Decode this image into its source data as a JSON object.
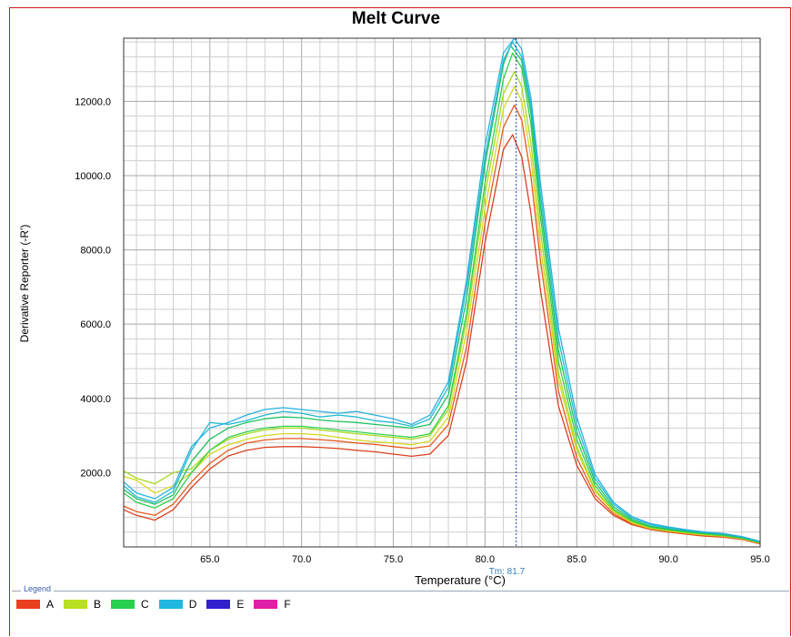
{
  "chart_data": {
    "type": "line",
    "title": "Melt Curve",
    "xlabel": "Temperature (°C)",
    "ylabel": "Derivative Reporter (-R')",
    "xlim": [
      60.3,
      95.0
    ],
    "ylim": [
      0,
      13700
    ],
    "grid": true,
    "x_ticks": [
      65,
      70,
      75,
      80,
      85,
      90,
      95
    ],
    "x_tick_labels": [
      "65.0",
      "70.0",
      "75.0",
      "80.0",
      "85.0",
      "90.0",
      "95.0"
    ],
    "y_ticks": [
      2000,
      4000,
      6000,
      8000,
      10000,
      12000
    ],
    "y_tick_labels": [
      "2000.0",
      "4000.0",
      "6000.0",
      "8000.0",
      "10000.0",
      "12000.0"
    ],
    "annotation": {
      "label": "Tm: 81.7",
      "x": 81.7
    },
    "legend": {
      "title": "Legend",
      "position": "bottom",
      "entries": [
        {
          "name": "A",
          "color": "#e8401c"
        },
        {
          "name": "B",
          "color": "#b8e020"
        },
        {
          "name": "C",
          "color": "#28d050"
        },
        {
          "name": "D",
          "color": "#20b8e0"
        },
        {
          "name": "E",
          "color": "#3020d0"
        },
        {
          "name": "F",
          "color": "#e020a8"
        }
      ]
    },
    "series": [
      {
        "group": "A",
        "color": "#d84020",
        "points": [
          [
            60.3,
            1000
          ],
          [
            61,
            850
          ],
          [
            62,
            720
          ],
          [
            63,
            1000
          ],
          [
            64,
            1600
          ],
          [
            65,
            2100
          ],
          [
            66,
            2450
          ],
          [
            67,
            2600
          ],
          [
            68,
            2680
          ],
          [
            69,
            2700
          ],
          [
            70,
            2700
          ],
          [
            71,
            2680
          ],
          [
            72,
            2650
          ],
          [
            73,
            2600
          ],
          [
            74,
            2560
          ],
          [
            75,
            2500
          ],
          [
            76,
            2440
          ],
          [
            77,
            2500
          ],
          [
            78,
            3000
          ],
          [
            79,
            5000
          ],
          [
            80,
            8200
          ],
          [
            81,
            10700
          ],
          [
            81.5,
            11100
          ],
          [
            82,
            10500
          ],
          [
            82.5,
            9000
          ],
          [
            83,
            7000
          ],
          [
            84,
            3800
          ],
          [
            85,
            2200
          ],
          [
            86,
            1300
          ],
          [
            87,
            850
          ],
          [
            88,
            600
          ],
          [
            89,
            470
          ],
          [
            90,
            400
          ],
          [
            91,
            340
          ],
          [
            92,
            290
          ],
          [
            93,
            260
          ],
          [
            94,
            200
          ],
          [
            95,
            80
          ]
        ]
      },
      {
        "group": "A",
        "color": "#e65a1e",
        "points": [
          [
            60.3,
            1100
          ],
          [
            61,
            950
          ],
          [
            62,
            850
          ],
          [
            63,
            1150
          ],
          [
            64,
            1750
          ],
          [
            65,
            2250
          ],
          [
            66,
            2600
          ],
          [
            67,
            2800
          ],
          [
            68,
            2880
          ],
          [
            69,
            2920
          ],
          [
            70,
            2920
          ],
          [
            71,
            2890
          ],
          [
            72,
            2850
          ],
          [
            73,
            2800
          ],
          [
            74,
            2760
          ],
          [
            75,
            2700
          ],
          [
            76,
            2650
          ],
          [
            77,
            2720
          ],
          [
            78,
            3300
          ],
          [
            79,
            5400
          ],
          [
            80,
            8700
          ],
          [
            81,
            11300
          ],
          [
            81.6,
            11900
          ],
          [
            82,
            11500
          ],
          [
            82.5,
            10000
          ],
          [
            83,
            7800
          ],
          [
            84,
            4200
          ],
          [
            85,
            2400
          ],
          [
            86,
            1400
          ],
          [
            87,
            900
          ],
          [
            88,
            620
          ],
          [
            89,
            480
          ],
          [
            90,
            410
          ],
          [
            91,
            350
          ],
          [
            92,
            300
          ],
          [
            93,
            270
          ],
          [
            94,
            210
          ],
          [
            95,
            90
          ]
        ]
      },
      {
        "group": "B",
        "color": "#d4d81c",
        "points": [
          [
            60.3,
            1900
          ],
          [
            61,
            1800
          ],
          [
            62,
            1450
          ],
          [
            63,
            1650
          ],
          [
            64,
            2000
          ],
          [
            65,
            2500
          ],
          [
            66,
            2750
          ],
          [
            67,
            2900
          ],
          [
            68,
            3000
          ],
          [
            69,
            3050
          ],
          [
            70,
            3050
          ],
          [
            71,
            3020
          ],
          [
            72,
            2950
          ],
          [
            73,
            2880
          ],
          [
            74,
            2830
          ],
          [
            75,
            2800
          ],
          [
            76,
            2750
          ],
          [
            77,
            2850
          ],
          [
            78,
            3500
          ],
          [
            79,
            5800
          ],
          [
            80,
            9100
          ],
          [
            81,
            11800
          ],
          [
            81.6,
            12400
          ],
          [
            82,
            12000
          ],
          [
            82.5,
            10500
          ],
          [
            83,
            8200
          ],
          [
            84,
            4500
          ],
          [
            85,
            2600
          ],
          [
            86,
            1500
          ],
          [
            87,
            950
          ],
          [
            88,
            650
          ],
          [
            89,
            500
          ],
          [
            90,
            430
          ],
          [
            91,
            370
          ],
          [
            92,
            320
          ],
          [
            93,
            290
          ],
          [
            94,
            220
          ],
          [
            95,
            100
          ]
        ]
      },
      {
        "group": "B",
        "color": "#a8d820",
        "points": [
          [
            60.3,
            2050
          ],
          [
            61,
            1850
          ],
          [
            62,
            1700
          ],
          [
            63,
            2000
          ],
          [
            64,
            2100
          ],
          [
            65,
            2600
          ],
          [
            66,
            2900
          ],
          [
            67,
            3050
          ],
          [
            68,
            3150
          ],
          [
            69,
            3200
          ],
          [
            70,
            3200
          ],
          [
            71,
            3150
          ],
          [
            72,
            3100
          ],
          [
            73,
            3050
          ],
          [
            74,
            3000
          ],
          [
            75,
            2950
          ],
          [
            76,
            2900
          ],
          [
            77,
            3000
          ],
          [
            78,
            3700
          ],
          [
            79,
            6100
          ],
          [
            80,
            9500
          ],
          [
            81,
            12200
          ],
          [
            81.6,
            12800
          ],
          [
            82,
            12400
          ],
          [
            82.5,
            10900
          ],
          [
            83,
            8600
          ],
          [
            84,
            4700
          ],
          [
            85,
            2700
          ],
          [
            86,
            1550
          ],
          [
            87,
            980
          ],
          [
            88,
            680
          ],
          [
            89,
            520
          ],
          [
            90,
            450
          ],
          [
            91,
            390
          ],
          [
            92,
            340
          ],
          [
            93,
            300
          ],
          [
            94,
            230
          ],
          [
            95,
            110
          ]
        ]
      },
      {
        "group": "C",
        "color": "#30d04c",
        "points": [
          [
            60.3,
            1450
          ],
          [
            61,
            1200
          ],
          [
            62,
            1050
          ],
          [
            63,
            1300
          ],
          [
            64,
            2000
          ],
          [
            65,
            2600
          ],
          [
            66,
            2950
          ],
          [
            67,
            3100
          ],
          [
            68,
            3200
          ],
          [
            69,
            3250
          ],
          [
            70,
            3250
          ],
          [
            71,
            3200
          ],
          [
            72,
            3150
          ],
          [
            73,
            3100
          ],
          [
            74,
            3050
          ],
          [
            75,
            3000
          ],
          [
            76,
            2950
          ],
          [
            77,
            3050
          ],
          [
            78,
            3800
          ],
          [
            79,
            6300
          ],
          [
            80,
            9800
          ],
          [
            81,
            12600
          ],
          [
            81.5,
            13300
          ],
          [
            82,
            12900
          ],
          [
            82.5,
            11400
          ],
          [
            83,
            9000
          ],
          [
            84,
            5000
          ],
          [
            85,
            2900
          ],
          [
            86,
            1650
          ],
          [
            87,
            1020
          ],
          [
            88,
            700
          ],
          [
            89,
            540
          ],
          [
            90,
            460
          ],
          [
            91,
            400
          ],
          [
            92,
            350
          ],
          [
            93,
            310
          ],
          [
            94,
            240
          ],
          [
            95,
            120
          ]
        ]
      },
      {
        "group": "C",
        "color": "#20c060",
        "points": [
          [
            60.3,
            1550
          ],
          [
            61,
            1300
          ],
          [
            62,
            1150
          ],
          [
            63,
            1400
          ],
          [
            64,
            2300
          ],
          [
            65,
            2900
          ],
          [
            66,
            3200
          ],
          [
            67,
            3350
          ],
          [
            68,
            3450
          ],
          [
            69,
            3500
          ],
          [
            70,
            3480
          ],
          [
            71,
            3420
          ],
          [
            72,
            3380
          ],
          [
            73,
            3350
          ],
          [
            74,
            3300
          ],
          [
            75,
            3250
          ],
          [
            76,
            3200
          ],
          [
            77,
            3300
          ],
          [
            78,
            4100
          ],
          [
            79,
            6700
          ],
          [
            80,
            10300
          ],
          [
            81,
            13000
          ],
          [
            81.4,
            13500
          ],
          [
            82,
            13100
          ],
          [
            82.5,
            11700
          ],
          [
            83,
            9300
          ],
          [
            84,
            5300
          ],
          [
            85,
            3100
          ],
          [
            86,
            1750
          ],
          [
            87,
            1080
          ],
          [
            88,
            740
          ],
          [
            89,
            560
          ],
          [
            90,
            480
          ],
          [
            91,
            420
          ],
          [
            92,
            370
          ],
          [
            93,
            330
          ],
          [
            94,
            250
          ],
          [
            95,
            130
          ]
        ]
      },
      {
        "group": "D",
        "color": "#20bcd0",
        "points": [
          [
            60.3,
            1650
          ],
          [
            61,
            1350
          ],
          [
            62,
            1200
          ],
          [
            63,
            1500
          ],
          [
            64,
            2600
          ],
          [
            65,
            3350
          ],
          [
            66,
            3300
          ],
          [
            67,
            3400
          ],
          [
            68,
            3550
          ],
          [
            69,
            3650
          ],
          [
            70,
            3600
          ],
          [
            71,
            3500
          ],
          [
            72,
            3550
          ],
          [
            73,
            3500
          ],
          [
            74,
            3400
          ],
          [
            75,
            3350
          ],
          [
            76,
            3250
          ],
          [
            77,
            3450
          ],
          [
            78,
            4300
          ],
          [
            79,
            7000
          ],
          [
            80,
            10500
          ],
          [
            81,
            13100
          ],
          [
            81.5,
            13600
          ],
          [
            82,
            13200
          ],
          [
            82.5,
            11900
          ],
          [
            83,
            9600
          ],
          [
            84,
            5600
          ],
          [
            85,
            3300
          ],
          [
            86,
            1850
          ],
          [
            87,
            1150
          ],
          [
            88,
            780
          ],
          [
            89,
            600
          ],
          [
            90,
            510
          ],
          [
            91,
            440
          ],
          [
            92,
            390
          ],
          [
            93,
            350
          ],
          [
            94,
            270
          ],
          [
            95,
            140
          ]
        ]
      },
      {
        "group": "D",
        "color": "#28b0e0",
        "points": [
          [
            60.3,
            1750
          ],
          [
            61,
            1450
          ],
          [
            62,
            1300
          ],
          [
            63,
            1600
          ],
          [
            64,
            2700
          ],
          [
            65,
            3200
          ],
          [
            66,
            3350
          ],
          [
            67,
            3550
          ],
          [
            68,
            3700
          ],
          [
            69,
            3750
          ],
          [
            70,
            3700
          ],
          [
            71,
            3650
          ],
          [
            72,
            3600
          ],
          [
            73,
            3650
          ],
          [
            74,
            3550
          ],
          [
            75,
            3450
          ],
          [
            76,
            3300
          ],
          [
            77,
            3550
          ],
          [
            78,
            4450
          ],
          [
            79,
            7200
          ],
          [
            80,
            10800
          ],
          [
            81,
            13300
          ],
          [
            81.6,
            13700
          ],
          [
            82,
            13400
          ],
          [
            82.5,
            12100
          ],
          [
            83,
            9900
          ],
          [
            84,
            5900
          ],
          [
            85,
            3500
          ],
          [
            86,
            1950
          ],
          [
            87,
            1200
          ],
          [
            88,
            820
          ],
          [
            89,
            630
          ],
          [
            90,
            540
          ],
          [
            91,
            460
          ],
          [
            92,
            400
          ],
          [
            93,
            360
          ],
          [
            94,
            280
          ],
          [
            95,
            150
          ]
        ]
      }
    ]
  }
}
